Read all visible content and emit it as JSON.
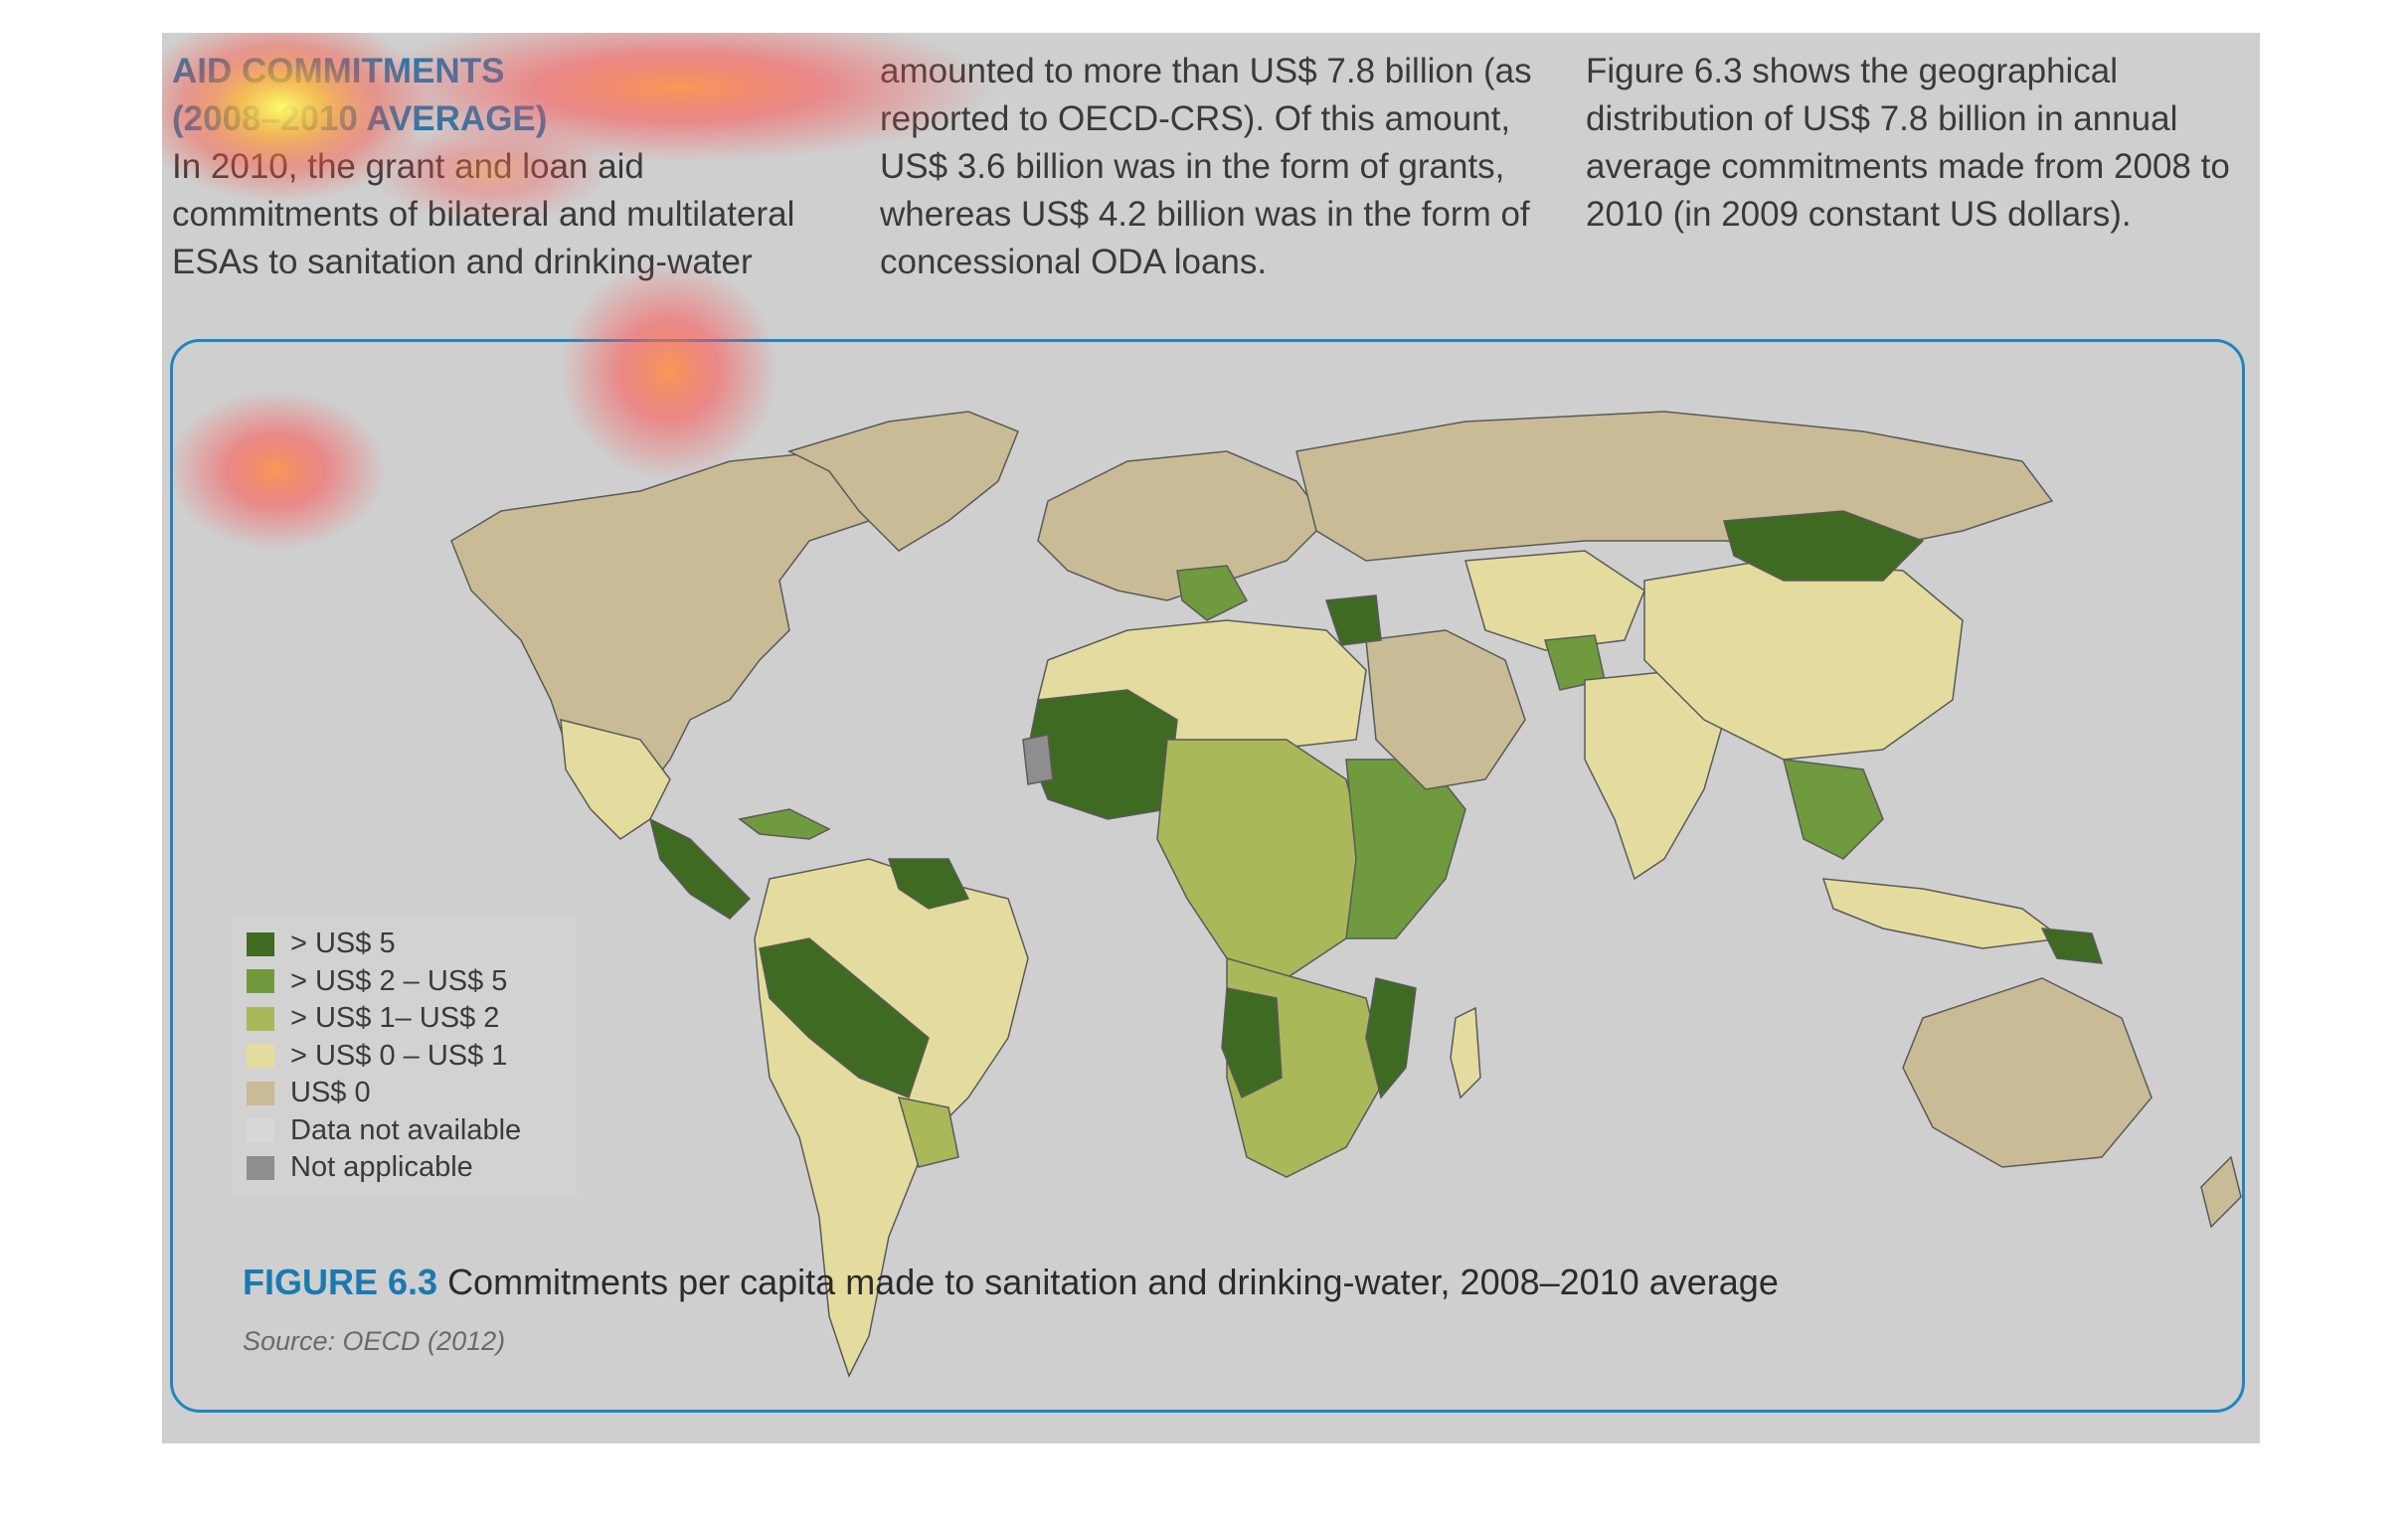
{
  "text": {
    "heading_line1": "AID COMMITMENTS",
    "heading_line2": "(2008–2010 AVERAGE)",
    "col1_body": "In 2010, the grant and loan aid commitments of bilateral and multilateral ESAs to sanitation and drinking-water",
    "col2_body": "amounted to more than US$ 7.8 billion (as reported to OECD-CRS). Of this amount, US$ 3.6 billion was in the form of grants, whereas US$ 4.2 billion was in the form of concessional ODA loans.",
    "col3_body": "Figure 6.3 shows the geographical distribution of US$ 7.8 billion in annual average commitments made from 2008 to 2010 (in 2009 constant US dollars)."
  },
  "figure": {
    "label": "FIGURE 6.3",
    "caption": "Commitments per capita made to sanitation and drinking-water, 2008–2010 average",
    "source": "Source: OECD (2012)"
  },
  "legend": {
    "items": [
      {
        "label": "> US$ 5",
        "color": "#3e6a22"
      },
      {
        "label": "> US$ 2 – US$ 5",
        "color": "#6f9a3e"
      },
      {
        "label": "> US$ 1– US$ 2",
        "color": "#aab85a"
      },
      {
        "label": "> US$ 0 – US$ 1",
        "color": "#e4dc9e"
      },
      {
        "label": "US$ 0",
        "color": "#c9bb95"
      },
      {
        "label": "Data not available",
        "color": "#d8d8d8"
      },
      {
        "label": "Not applicable",
        "color": "#8e8e8e"
      }
    ]
  },
  "colors": {
    "ocean": "#cfcfcf",
    "frame": "#1f86bf",
    "accent": "#1a7ab0",
    "border_line": "#5a5a5a"
  }
}
